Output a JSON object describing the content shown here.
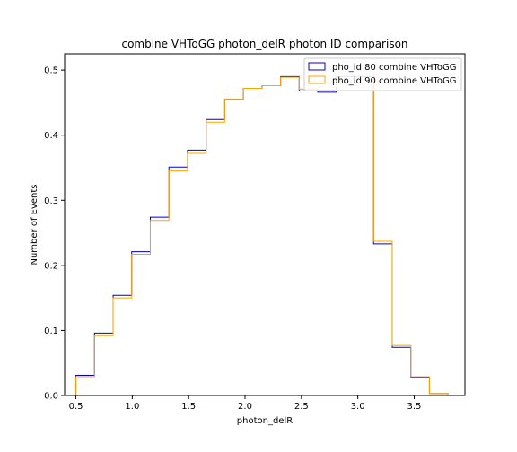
{
  "chart_data": {
    "type": "histogram",
    "title": "combine VHToGG photon_delR photon ID comparison",
    "xlabel": "photon_delR",
    "ylabel": "Number of Events",
    "xlim": [
      0.4,
      3.95
    ],
    "ylim": [
      0,
      0.525
    ],
    "xticks": [
      0.5,
      1.0,
      1.5,
      2.0,
      2.5,
      3.0,
      3.5
    ],
    "xtick_labels": [
      "0.5",
      "1.0",
      "1.5",
      "2.0",
      "2.5",
      "3.0",
      "3.5"
    ],
    "yticks": [
      0.0,
      0.1,
      0.2,
      0.3,
      0.4,
      0.5
    ],
    "ytick_labels": [
      "0.0",
      "0.1",
      "0.2",
      "0.3",
      "0.4",
      "0.5"
    ],
    "grid": false,
    "legend_position": "top-right",
    "bin_edges": [
      0.5,
      0.665,
      0.83,
      0.995,
      1.16,
      1.325,
      1.49,
      1.655,
      1.82,
      1.985,
      2.15,
      2.315,
      2.48,
      2.645,
      2.81,
      2.975,
      3.14,
      3.305,
      3.47,
      3.635,
      3.8
    ],
    "series": [
      {
        "name": "pho_id 80 combine VHToGG",
        "color": "#0000cc",
        "values": [
          0.031,
          0.096,
          0.154,
          0.221,
          0.274,
          0.351,
          0.377,
          0.424,
          0.455,
          0.472,
          0.476,
          0.49,
          0.468,
          0.466,
          0.49,
          0.49,
          0.233,
          0.074,
          0.028,
          0.003
        ]
      },
      {
        "name": "pho_id 90 combine VHToGG",
        "color": "#ffa500",
        "values": [
          0.029,
          0.092,
          0.15,
          0.217,
          0.269,
          0.345,
          0.372,
          0.42,
          0.455,
          0.472,
          0.476,
          0.489,
          0.471,
          0.469,
          0.49,
          0.49,
          0.237,
          0.077,
          0.029,
          0.003
        ]
      }
    ]
  }
}
